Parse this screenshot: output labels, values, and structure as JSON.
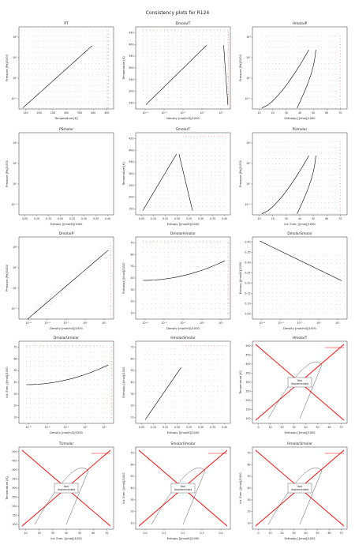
{
  "figure": {
    "title": "Consistency plots for R124"
  },
  "colors": {
    "curve": "#000000",
    "failed": "#ff0000",
    "box_edge": "#000000",
    "saturation_red": "#ff0000"
  },
  "chart_data": [
    {
      "type": "scatter",
      "title": "PT",
      "xlabel": "Temperature [K]",
      "ylabel": "Pressure [Pa]/1000",
      "xlim": [
        105,
        480
      ],
      "ylog": true,
      "ylim": [
        0.002,
        300000
      ],
      "xticks": [
        "150",
        "200",
        "250",
        "300",
        "350",
        "400",
        "450"
      ],
      "yticks": [
        "10⁻²",
        "10⁰",
        "10²",
        "10⁴"
      ],
      "grid": false,
      "curve_kind": "pt",
      "has_failures": true
    },
    {
      "type": "scatter",
      "title": "DmolarT",
      "xlabel": "Density [mol/m3]/1000",
      "ylabel": "Temperature [K]",
      "xlog": true,
      "xlim": [
        3e-06,
        15
      ],
      "ylim": [
        100,
        480
      ],
      "xticks": [
        "10⁻⁴",
        "10⁻³",
        "10⁻¹",
        "10⁰",
        "10¹"
      ],
      "yticks": [
        "150",
        "200",
        "250",
        "300",
        "350",
        "400",
        "450"
      ],
      "grid": false,
      "curve_kind": "dt",
      "has_failures": true
    },
    {
      "type": "scatter",
      "title": "HmolarP",
      "xlabel": "Enthalpy [J/mol]/1000",
      "ylabel": "Pressure [Pa]/1000",
      "xlim": [
        5,
        75
      ],
      "ylog": true,
      "ylim": [
        0.002,
        300000
      ],
      "xticks": [
        "10",
        "20",
        "30",
        "40",
        "50",
        "60",
        "70"
      ],
      "yticks": [
        "10⁻²",
        "10⁰",
        "10²",
        "10⁴"
      ],
      "grid": false,
      "curve_kind": "dome",
      "has_failures": true
    },
    {
      "type": "scatter",
      "title": "PSmolar",
      "xlabel": "Entropy [J/mol/K]/1000",
      "ylabel": "Pressure [Pa]/1000",
      "xlim": [
        0.02,
        0.42
      ],
      "ylog": true,
      "ylim": [
        0.002,
        300000
      ],
      "xticks": [
        "0.05",
        "0.10",
        "0.15",
        "0.20",
        "0.25",
        "0.30",
        "0.35",
        "0.40"
      ],
      "yticks": [
        "10⁻²",
        "10⁰",
        "10²",
        "10⁴"
      ],
      "grid": false,
      "curve_kind": "dome",
      "has_failures": true
    },
    {
      "type": "scatter",
      "title": "SmolarT",
      "xlabel": "Entropy [J/mol/K]/1000",
      "ylabel": "Temperature [K]",
      "xlim": [
        0.02,
        0.42
      ],
      "ylim": [
        100,
        480
      ],
      "xticks": [
        "0.05",
        "0.10",
        "0.15",
        "0.20",
        "0.25",
        "0.30",
        "0.35",
        "0.40"
      ],
      "yticks": [
        "150",
        "200",
        "250",
        "300",
        "350",
        "400",
        "450"
      ],
      "grid": false,
      "curve_kind": "tsdome",
      "has_failures": true
    },
    {
      "type": "scatter",
      "title": "PUmolar",
      "xlabel": "Int. Ener. [J/mol]/1000",
      "ylabel": "Pressure [Pa]/1000",
      "xlim": [
        5,
        75
      ],
      "ylog": true,
      "ylim": [
        0.002,
        300000
      ],
      "xticks": [
        "10",
        "20",
        "30",
        "40",
        "50",
        "60",
        "70"
      ],
      "yticks": [
        "10⁻²",
        "10⁰",
        "10²",
        "10⁴"
      ],
      "grid": false,
      "curve_kind": "dome",
      "has_failures": true
    },
    {
      "type": "scatter",
      "title": "DmolarP",
      "xlabel": "Density [mol/m3]/1000",
      "ylabel": "Pressure [Pa]/1000",
      "xlog": true,
      "xlim": [
        3e-06,
        15
      ],
      "ylog": true,
      "ylim": [
        0.002,
        300000
      ],
      "xticks": [
        "10⁻⁴",
        "10⁻³",
        "10⁻¹",
        "10⁰",
        "10¹"
      ],
      "yticks": [
        "10⁻²",
        "10⁰",
        "10²",
        "10⁴"
      ],
      "grid": false,
      "curve_kind": "dp",
      "has_failures": true
    },
    {
      "type": "scatter",
      "title": "DmolarHmolar",
      "xlabel": "Density [mol/m3]/1000",
      "ylabel": "Enthalpy [J/mol]/1000",
      "xlog": true,
      "xlim": [
        3e-06,
        15
      ],
      "ylim": [
        5,
        75
      ],
      "xticks": [
        "10⁻⁴",
        "10⁻³",
        "10⁻¹",
        "10⁰",
        "10¹"
      ],
      "yticks": [
        "10",
        "20",
        "30",
        "40",
        "50",
        "60",
        "70"
      ],
      "grid": false,
      "curve_kind": "dh",
      "has_failures": true
    },
    {
      "type": "scatter",
      "title": "DmolarSmolar",
      "xlabel": "Density [mol/m3]/1000",
      "ylabel": "Entropy [J/mol/K]/1000",
      "xlog": true,
      "xlim": [
        3e-06,
        15
      ],
      "ylim": [
        0.02,
        0.42
      ],
      "xticks": [
        "10⁻⁴",
        "10⁻³",
        "10⁻¹",
        "10⁰",
        "10¹"
      ],
      "yticks": [
        "0.05",
        "0.10",
        "0.15",
        "0.20",
        "0.25",
        "0.30",
        "0.35",
        "0.40"
      ],
      "grid": false,
      "curve_kind": "ds",
      "has_failures": false
    },
    {
      "type": "scatter",
      "title": "DmolarUmolar",
      "xlabel": "Density [mol/m3]/1000",
      "ylabel": "Int. Ener. [J/mol]/1000",
      "xlog": true,
      "xlim": [
        3e-06,
        15
      ],
      "ylim": [
        5,
        75
      ],
      "xticks": [
        "10⁻⁴",
        "10⁻³",
        "10⁻¹",
        "10⁰",
        "10¹"
      ],
      "yticks": [
        "10",
        "20",
        "30",
        "40",
        "50",
        "60",
        "70"
      ],
      "grid": false,
      "curve_kind": "dh",
      "has_failures": true
    },
    {
      "type": "scatter",
      "title": "HmolarSmolar",
      "xlabel": "Entropy [J/mol/K]/1000",
      "ylabel": "Enthalpy [J/mol]/1000",
      "xlim": [
        0.02,
        0.42
      ],
      "ylim": [
        5,
        75
      ],
      "xticks": [
        "0.05",
        "0.10",
        "0.15",
        "0.20",
        "0.25",
        "0.30",
        "0.35",
        "0.40"
      ],
      "yticks": [
        "10",
        "20",
        "30",
        "40",
        "50",
        "60",
        "70"
      ],
      "grid": false,
      "curve_kind": "hs",
      "has_failures": true
    },
    {
      "type": "scatter",
      "title": "HmolarT",
      "xlabel": "Enthalpy [J/mol]/1000",
      "ylabel": "Temperature [K]",
      "xlim": [
        0,
        75
      ],
      "ylim": [
        100,
        500
      ],
      "xticks": [
        "0",
        "10",
        "20",
        "30",
        "40",
        "50",
        "60",
        "70"
      ],
      "yticks": [
        "100",
        "150",
        "200",
        "250",
        "300",
        "350",
        "400",
        "450",
        "500"
      ],
      "grid": false,
      "curve_kind": "ni_ht",
      "not_implemented": "Not\nImplemented"
    },
    {
      "type": "scatter",
      "title": "TUmolar",
      "xlabel": "Int. Ener. [J/mol]/1000",
      "ylabel": "Temperature [K]",
      "xlim": [
        5,
        72
      ],
      "ylim": [
        100,
        500
      ],
      "xticks": [
        "10",
        "20",
        "30",
        "40",
        "50",
        "60",
        "70"
      ],
      "yticks": [
        "100",
        "150",
        "200",
        "250",
        "300",
        "350",
        "400",
        "450",
        "500"
      ],
      "grid": false,
      "curve_kind": "ni_ht",
      "not_implemented": "Not\nImplemented"
    },
    {
      "type": "scatter",
      "title": "SmolarUmolar",
      "xlabel": "Entropy [J/mol/K]/1000",
      "ylabel": "Int. Ener. [J/mol]/1000",
      "xlim": [
        0,
        0.43
      ],
      "ylim": [
        5,
        75
      ],
      "xticks": [
        "0.0",
        "0.1",
        "0.2",
        "0.3",
        "0.4"
      ],
      "yticks": [
        "10",
        "20",
        "30",
        "40",
        "50",
        "60",
        "70"
      ],
      "grid": false,
      "curve_kind": "ni_su",
      "not_implemented": "Not\nImplemented"
    },
    {
      "type": "scatter",
      "title": "HmolarUmolar",
      "xlabel": "Enthalpy [J/mol]/1000",
      "ylabel": "Int. Ener. [J/mol]/1000",
      "xlim": [
        0,
        75
      ],
      "ylim": [
        5,
        75
      ],
      "xticks": [
        "0",
        "10",
        "20",
        "30",
        "40",
        "50",
        "60",
        "70"
      ],
      "yticks": [
        "10",
        "20",
        "30",
        "40",
        "50",
        "60",
        "70"
      ],
      "grid": false,
      "curve_kind": "ni_hu",
      "not_implemented": "Not\nImplemented"
    }
  ]
}
